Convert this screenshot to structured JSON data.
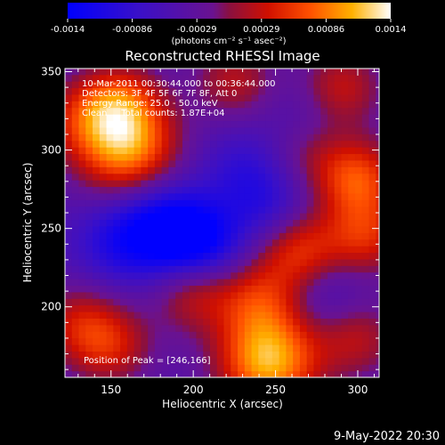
{
  "colorbar": {
    "tick_labels": [
      "-0.0014",
      "-0.00086",
      "-0.00029",
      "0.00029",
      "0.00086",
      "0.0014"
    ],
    "unit_label": "(photons cm⁻² s⁻¹ asec⁻²)",
    "range": [
      -0.0014,
      0.0014
    ]
  },
  "chart_data": {
    "type": "heatmap",
    "title": "Reconstructed RHESSI Image",
    "xlabel": "Heliocentric X (arcsec)",
    "ylabel": "Heliocentric Y (arcsec)",
    "xlim": [
      122,
      313
    ],
    "ylim": [
      155,
      352
    ],
    "x_ticks": [
      150,
      200,
      250,
      300
    ],
    "y_ticks": [
      200,
      250,
      300,
      350
    ],
    "colormap": "blue-purple-red-yellow-white",
    "annotations": {
      "time_range": "10-Mar-2011 00:30:44.000 to 00:36:44.000",
      "detectors": "Detectors: 3F 4F 5F 6F 7F 8F, Att 0",
      "energy_range": "Energy Range: 25.0 - 50.0 keV",
      "method": "Clean     Total counts: 1.87E+04",
      "peak": "Position of Peak = [246,166]"
    },
    "peak_position": [
      246,
      166
    ],
    "blobs": [
      {
        "x": 246,
        "y": 166,
        "value": 0.0014
      },
      {
        "x": 160,
        "y": 300,
        "value": 0.0012
      },
      {
        "x": 155,
        "y": 330,
        "value": 0.0008
      },
      {
        "x": 300,
        "y": 282,
        "value": 0.0009
      },
      {
        "x": 265,
        "y": 235,
        "value": 0.0008
      },
      {
        "x": 305,
        "y": 245,
        "value": 0.0007
      },
      {
        "x": 200,
        "y": 210,
        "value": 0.0006
      },
      {
        "x": 240,
        "y": 205,
        "value": 0.0006
      },
      {
        "x": 130,
        "y": 190,
        "value": 0.0005
      },
      {
        "x": 150,
        "y": 175,
        "value": 0.0006
      },
      {
        "x": 290,
        "y": 340,
        "value": 0.0006
      },
      {
        "x": 300,
        "y": 180,
        "value": 0.0005
      },
      {
        "x": 225,
        "y": 345,
        "value": 0.0005
      },
      {
        "x": 130,
        "y": 320,
        "value": 0.0004
      },
      {
        "x": 270,
        "y": 300,
        "value": 0.0003
      },
      {
        "x": 180,
        "y": 250,
        "value": -0.0012
      },
      {
        "x": 205,
        "y": 240,
        "value": -0.0009
      },
      {
        "x": 245,
        "y": 265,
        "value": -0.0006
      },
      {
        "x": 280,
        "y": 210,
        "value": -0.0005
      },
      {
        "x": 270,
        "y": 320,
        "value": -0.0004
      },
      {
        "x": 150,
        "y": 240,
        "value": -0.0005
      },
      {
        "x": 230,
        "y": 290,
        "value": -0.0005
      }
    ]
  },
  "footer": {
    "date": "9-May-2022 20:30"
  }
}
